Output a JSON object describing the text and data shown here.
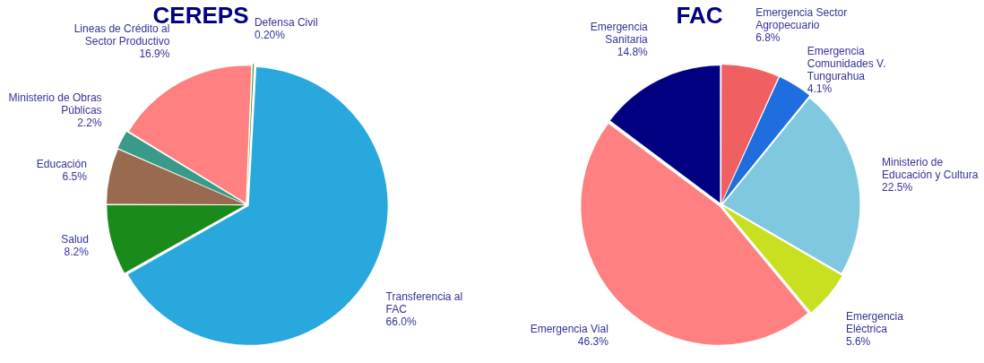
{
  "chart_data": [
    {
      "type": "pie",
      "title": "CEREPS",
      "categories": [
        "Transferencia al FAC",
        "Salud",
        "Educación",
        "Ministerio de Obras Públicas",
        "Lineas de Crédito al Sector Productivo",
        "Defensa Civil"
      ],
      "values": [
        66.0,
        8.2,
        6.5,
        2.2,
        16.9,
        0.2
      ],
      "colors": [
        "#28a8dc",
        "#1a8a1a",
        "#9a6a50",
        "#3a9a8a",
        "#ff8080",
        "#2a9a2a"
      ],
      "value_labels": [
        "66.0%",
        "8.2%",
        "6.5%",
        "2.2%",
        "16.9%",
        "0.20%"
      ],
      "legend": false
    },
    {
      "type": "pie",
      "title": "FAC",
      "categories": [
        "Emergencia Sector Agropecuario",
        "Emergencia Comunidades V. Tungurahua",
        "Ministerio de Educación y Cultura",
        "Emergencia Eléctrica",
        "Emergencia Vial",
        "Emergencia Sanitaria"
      ],
      "values": [
        6.8,
        4.1,
        22.5,
        5.6,
        46.3,
        14.8
      ],
      "colors": [
        "#f06060",
        "#1e6ee0",
        "#80c8e0",
        "#c8e020",
        "#ff8080",
        "#000080"
      ],
      "value_labels": [
        "6.8%",
        "4.1%",
        "22.5%",
        "5.6%",
        "46.3%",
        "14.8%"
      ],
      "legend": false
    }
  ]
}
